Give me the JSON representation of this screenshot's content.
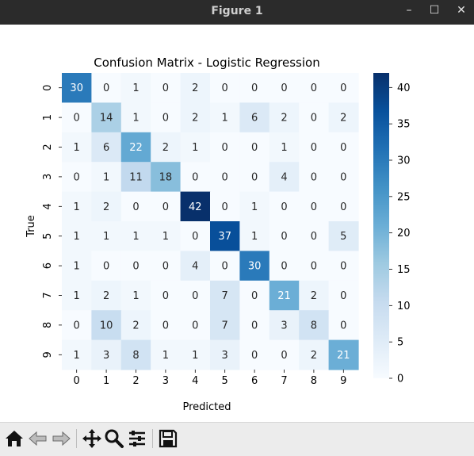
{
  "window": {
    "title": "Figure 1",
    "controls": {
      "minimize": "–",
      "maximize": "☐",
      "close": "✕"
    }
  },
  "toolbar": {
    "buttons": [
      "home-icon",
      "back-icon",
      "forward-icon",
      "pan-icon",
      "zoom-icon",
      "configure-subplots-icon",
      "save-icon"
    ]
  },
  "chart_data": {
    "type": "heatmap",
    "title": "Confusion Matrix - Logistic Regression",
    "xlabel": "Predicted",
    "ylabel": "True",
    "x_ticks": [
      "0",
      "1",
      "2",
      "3",
      "4",
      "5",
      "6",
      "7",
      "8",
      "9"
    ],
    "y_ticks": [
      "0",
      "1",
      "2",
      "3",
      "4",
      "5",
      "6",
      "7",
      "8",
      "9"
    ],
    "matrix": [
      [
        30,
        0,
        1,
        0,
        2,
        0,
        0,
        0,
        0,
        0
      ],
      [
        0,
        14,
        1,
        0,
        2,
        1,
        6,
        2,
        0,
        2
      ],
      [
        1,
        6,
        22,
        2,
        1,
        0,
        0,
        1,
        0,
        0
      ],
      [
        0,
        1,
        11,
        18,
        0,
        0,
        0,
        4,
        0,
        0
      ],
      [
        1,
        2,
        0,
        0,
        42,
        0,
        1,
        0,
        0,
        0
      ],
      [
        1,
        1,
        1,
        1,
        0,
        37,
        1,
        0,
        0,
        5
      ],
      [
        1,
        0,
        0,
        0,
        4,
        0,
        30,
        0,
        0,
        0
      ],
      [
        1,
        2,
        1,
        0,
        0,
        7,
        0,
        21,
        2,
        0
      ],
      [
        0,
        10,
        2,
        0,
        0,
        7,
        0,
        3,
        8,
        0
      ],
      [
        1,
        3,
        8,
        1,
        1,
        3,
        0,
        0,
        2,
        21
      ]
    ],
    "colormap": "Blues",
    "colorbar": {
      "vmin": 0,
      "vmax": 42,
      "ticks": [
        0,
        5,
        10,
        15,
        20,
        25,
        30,
        35,
        40
      ]
    },
    "annot_light_threshold": 21
  }
}
